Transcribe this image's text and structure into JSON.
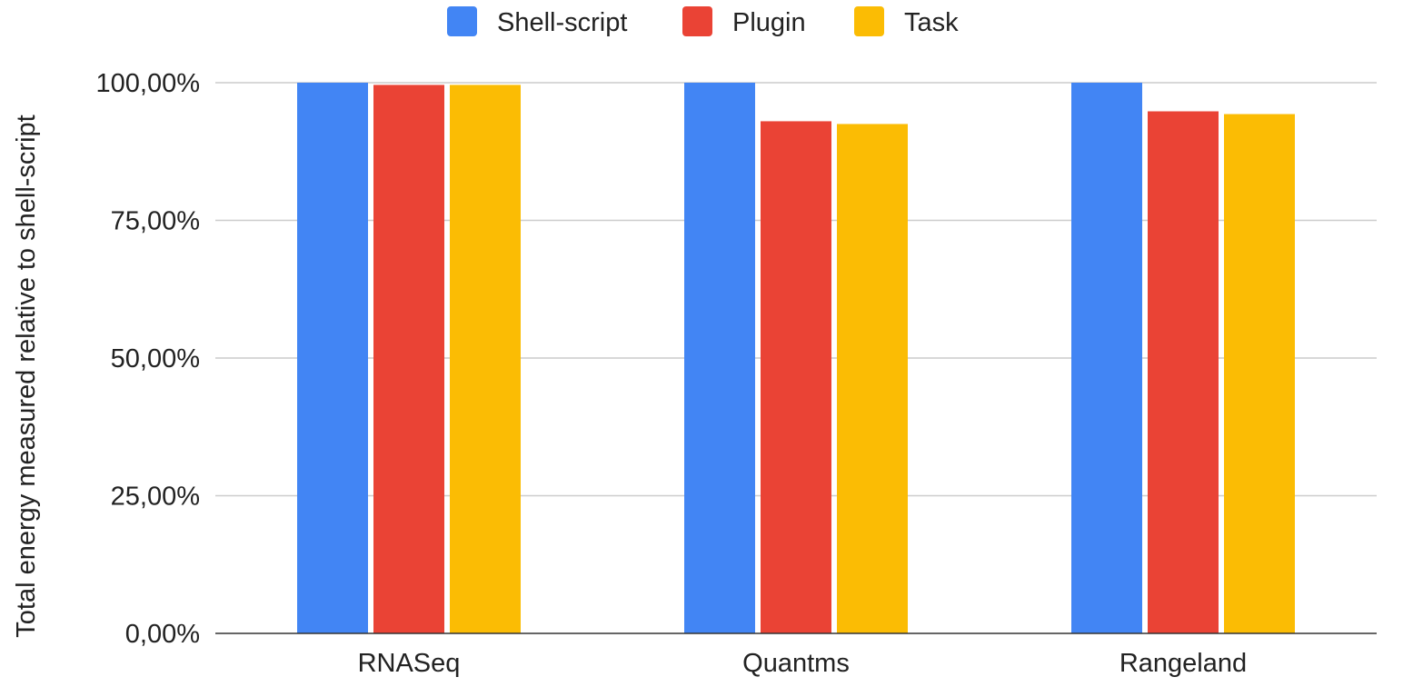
{
  "chart_data": {
    "type": "bar",
    "title": "",
    "xlabel": "",
    "ylabel": "Total energy measured relative to shell-script",
    "categories": [
      "RNASeq",
      "Quantms",
      "Rangeland"
    ],
    "series": [
      {
        "name": "Shell-script",
        "color": "#4285f4",
        "values": [
          100.0,
          100.0,
          100.0
        ]
      },
      {
        "name": "Plugin",
        "color": "#ea4335",
        "values": [
          99.6,
          93.0,
          94.8
        ]
      },
      {
        "name": "Task",
        "color": "#fbbc04",
        "values": [
          99.6,
          92.5,
          94.3
        ]
      }
    ],
    "ylim": [
      0,
      100
    ],
    "yticks": [
      0,
      25,
      50,
      75,
      100
    ],
    "ytick_labels": [
      "0,00%",
      "25,00%",
      "50,00%",
      "75,00%",
      "100,00%"
    ],
    "grid": true,
    "legend_position": "top-center"
  }
}
